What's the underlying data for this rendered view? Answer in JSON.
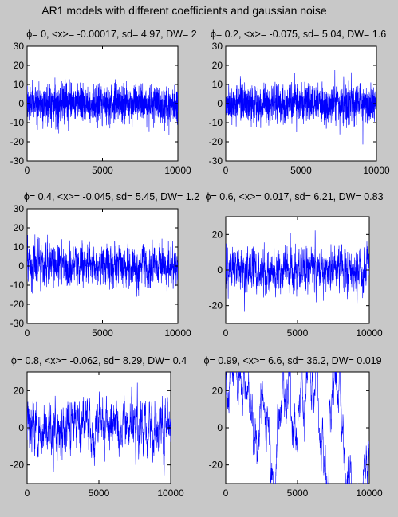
{
  "figure_title": "AR1 models with different coefficients and gaussian noise",
  "chart_data": [
    {
      "type": "line",
      "title": "ϕ= 0, <x>= -0.00017, sd= 4.97, DW= 2",
      "phi": 0,
      "mean": -0.00017,
      "sd": 4.97,
      "dw": 2,
      "xlim": [
        0,
        10000
      ],
      "ylim": [
        -30,
        30
      ],
      "xticks": [
        0,
        5000,
        10000
      ],
      "yticks": [
        30,
        20,
        10,
        0,
        -10,
        -20,
        -30
      ],
      "color": "#0000ff"
    },
    {
      "type": "line",
      "title": "ϕ= 0.2, <x>= -0.075, sd= 5.04, DW= 1.6",
      "phi": 0.2,
      "mean": -0.075,
      "sd": 5.04,
      "dw": 1.6,
      "xlim": [
        0,
        10000
      ],
      "ylim": [
        -30,
        30
      ],
      "xticks": [
        0,
        5000,
        10000
      ],
      "yticks": [
        30,
        20,
        10,
        0,
        -10,
        -20,
        -30
      ],
      "color": "#0000ff"
    },
    {
      "type": "line",
      "title": "ϕ= 0.4, <x>= -0.045, sd= 5.45, DW= 1.2",
      "phi": 0.4,
      "mean": -0.045,
      "sd": 5.45,
      "dw": 1.2,
      "xlim": [
        0,
        10000
      ],
      "ylim": [
        -30,
        30
      ],
      "xticks": [
        0,
        5000,
        10000
      ],
      "yticks": [
        30,
        20,
        10,
        0,
        -10,
        -20,
        -30
      ],
      "color": "#0000ff"
    },
    {
      "type": "line",
      "title": "ϕ= 0.6, <x>= 0.017, sd= 6.21, DW= 0.83",
      "phi": 0.6,
      "mean": 0.017,
      "sd": 6.21,
      "dw": 0.83,
      "xlim": [
        0,
        10000
      ],
      "ylim": [
        -30,
        30
      ],
      "xticks": [
        0,
        5000,
        10000
      ],
      "yticks": [
        20,
        0,
        -20
      ],
      "color": "#0000ff"
    },
    {
      "type": "line",
      "title": "ϕ= 0.8, <x>= -0.062, sd= 8.29, DW= 0.4",
      "phi": 0.8,
      "mean": -0.062,
      "sd": 8.29,
      "dw": 0.4,
      "xlim": [
        0,
        10000
      ],
      "ylim": [
        -30,
        30
      ],
      "xticks": [
        0,
        5000,
        10000
      ],
      "yticks": [
        20,
        0,
        -20
      ],
      "color": "#0000ff"
    },
    {
      "type": "line",
      "title": "ϕ= 0.99, <x>= 6.6, sd= 36.2, DW= 0.019",
      "phi": 0.99,
      "mean": 6.6,
      "sd": 36.2,
      "dw": 0.019,
      "xlim": [
        0,
        10000
      ],
      "ylim": [
        -30,
        30
      ],
      "xticks": [
        0,
        5000,
        10000
      ],
      "yticks": [
        20,
        0,
        -20
      ],
      "color": "#0000ff"
    }
  ]
}
